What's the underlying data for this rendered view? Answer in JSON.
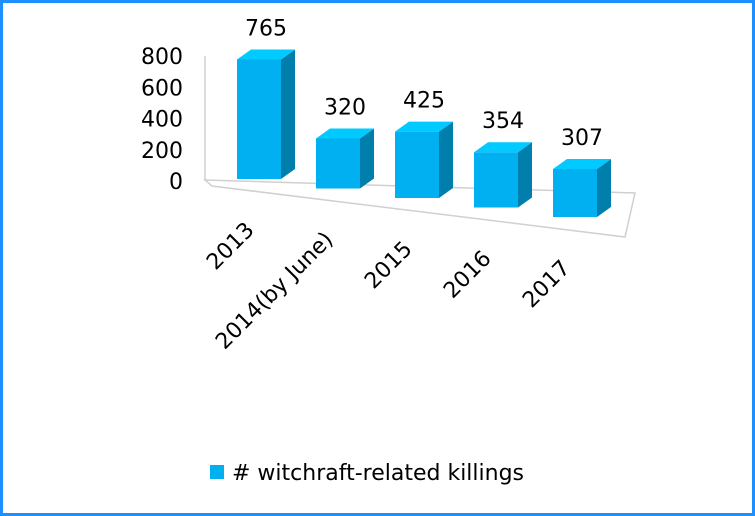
{
  "chart_data": {
    "type": "bar3d",
    "categories": [
      "2013",
      "2014(by June)",
      "2015",
      "2016",
      "2017"
    ],
    "series": [
      {
        "name": "# witchraft-related killings",
        "color": "#00b0f0",
        "values": [
          765,
          320,
          425,
          354,
          307
        ]
      }
    ],
    "ylim": [
      0,
      800
    ],
    "yticks": [
      0,
      200,
      400,
      600,
      800
    ],
    "legend": "bottom"
  }
}
